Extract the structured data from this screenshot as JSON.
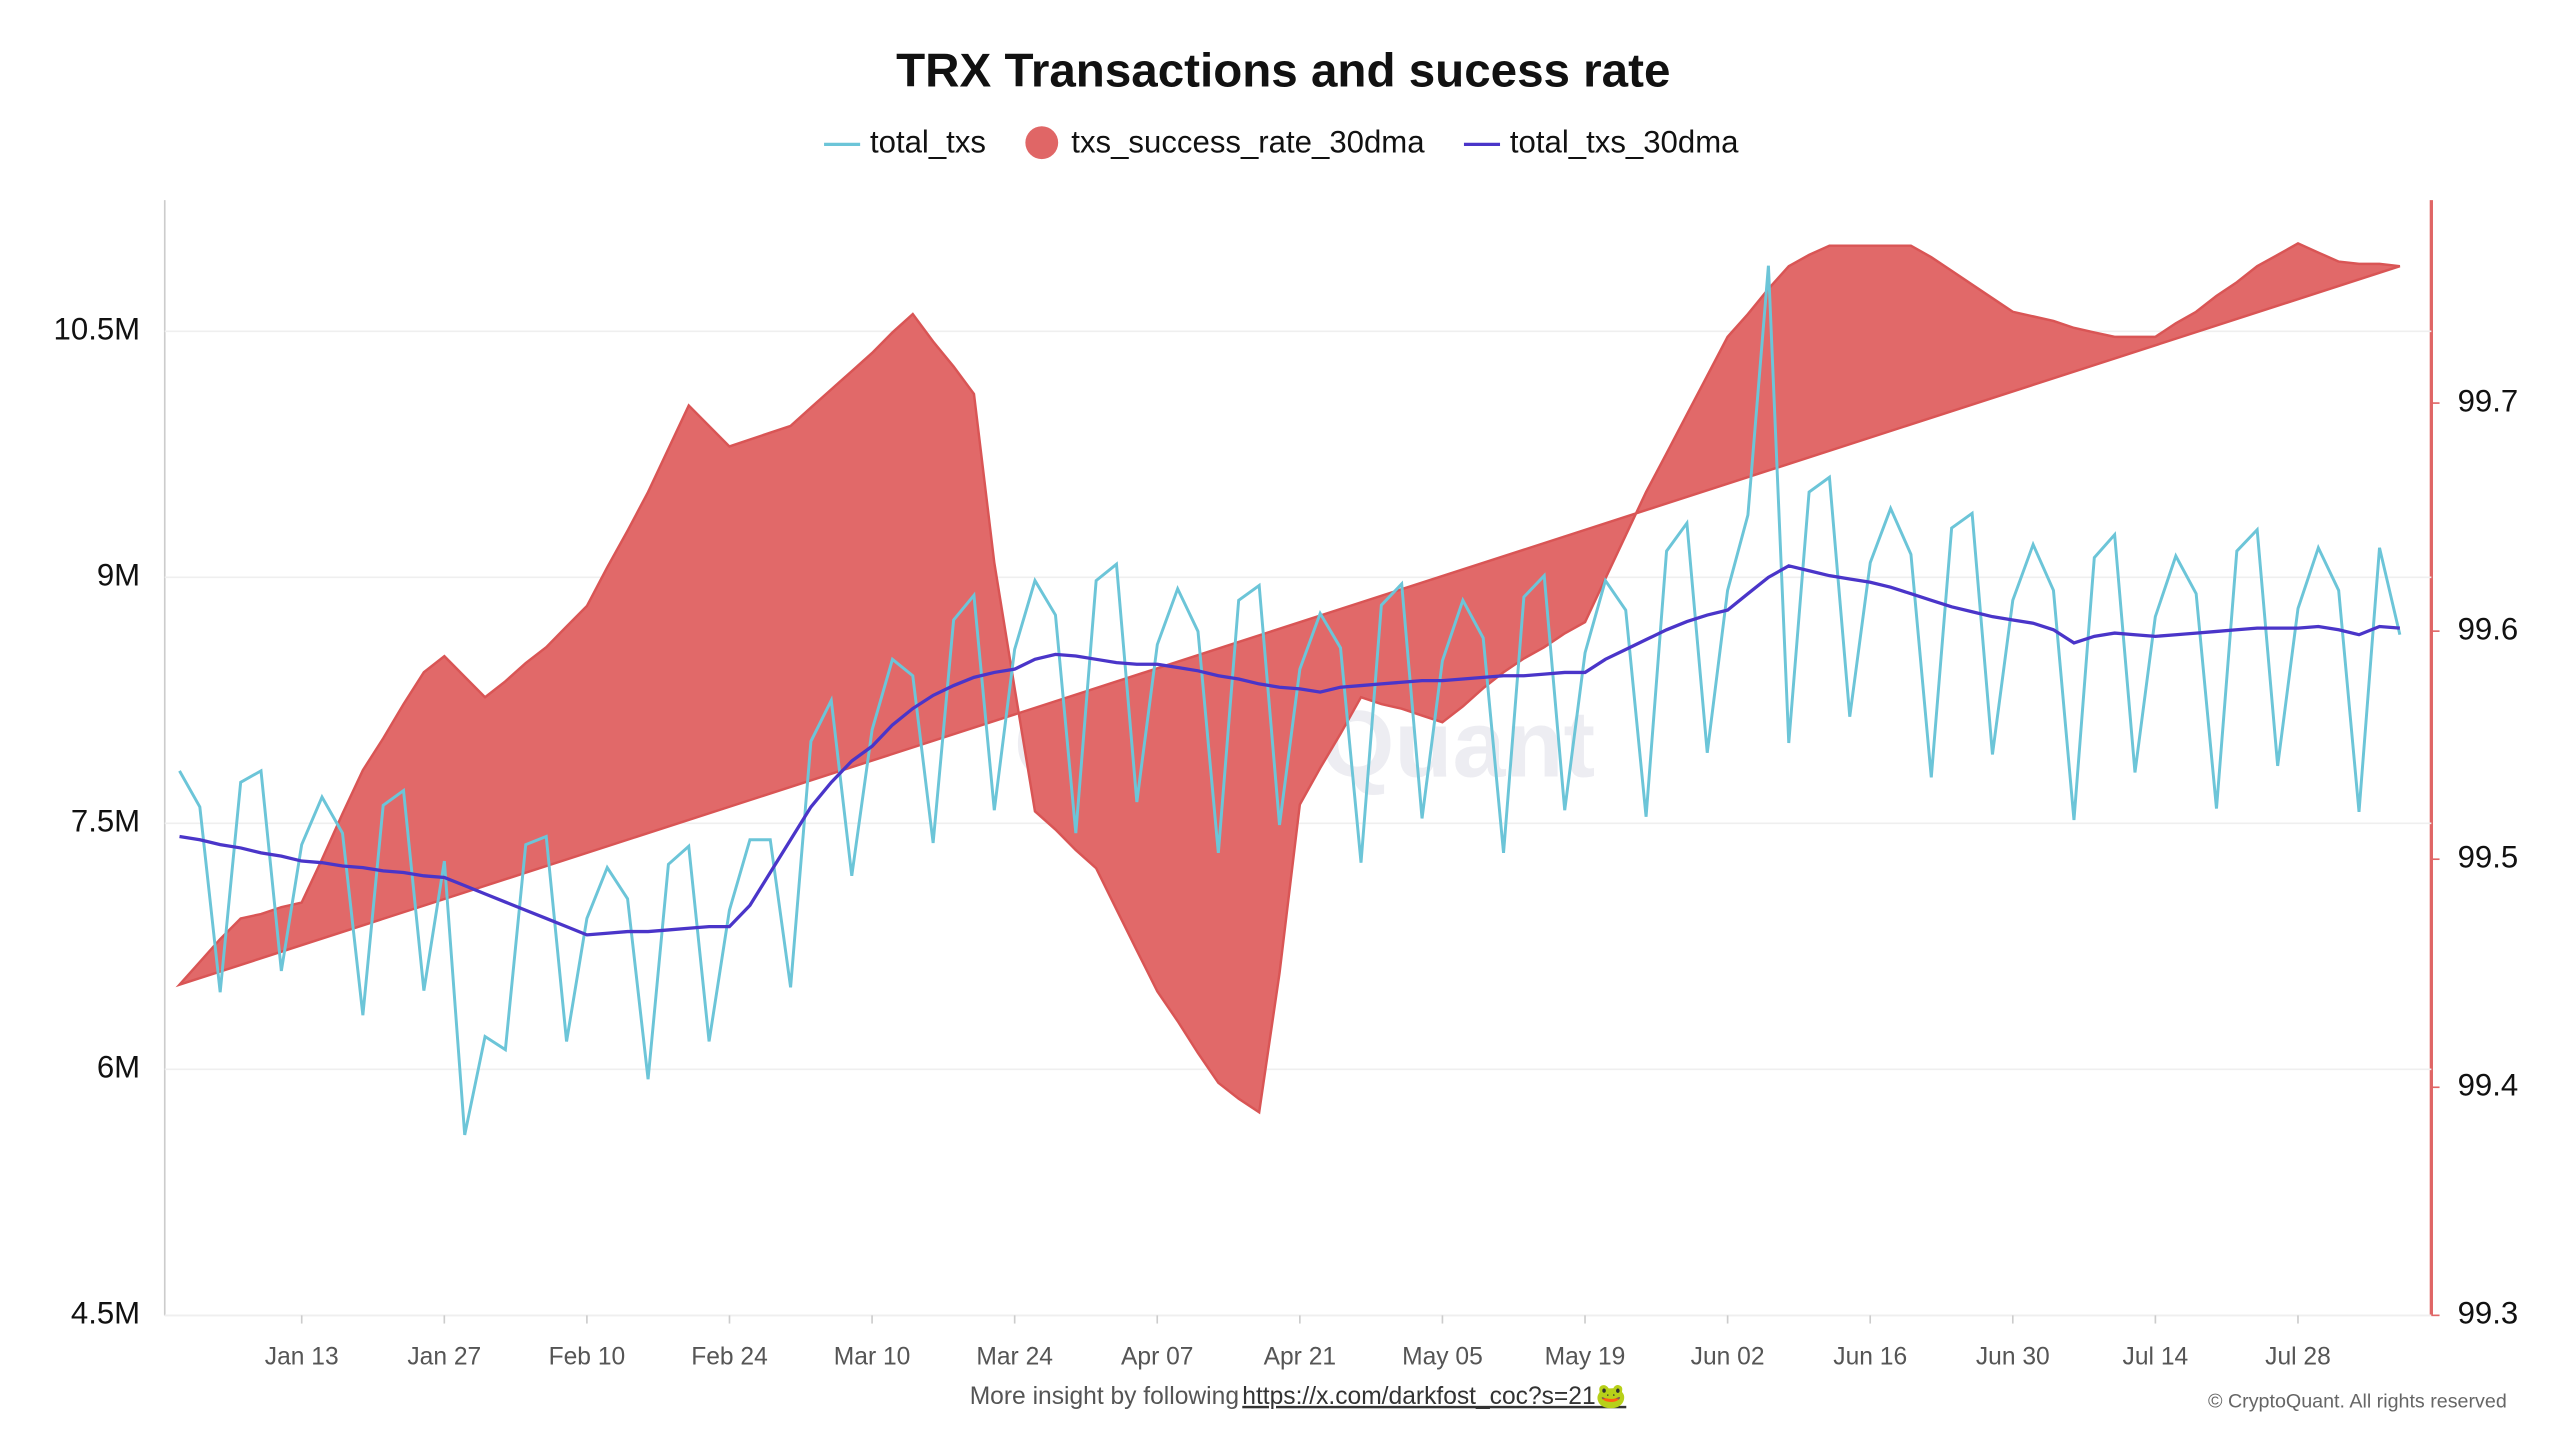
{
  "chart_data": {
    "type": "combo",
    "title": "TRX Transactions and sucess rate",
    "watermark": "CryptoQuant",
    "footer": {
      "text": "More insight by following",
      "link": "https://x.com/darkfost_coc?s=21🐸",
      "copyright": "© CryptoQuant. All rights reserved"
    },
    "categories": [
      null,
      null,
      null,
      null,
      null,
      null,
      "Jan 13",
      null,
      null,
      null,
      null,
      null,
      null,
      "Jan 27",
      null,
      null,
      null,
      null,
      null,
      null,
      "Feb 10",
      null,
      null,
      null,
      null,
      null,
      null,
      "Feb 24",
      null,
      null,
      null,
      null,
      null,
      null,
      "Mar 10",
      null,
      null,
      null,
      null,
      null,
      null,
      "Mar 24",
      null,
      null,
      null,
      null,
      null,
      null,
      "Apr 07",
      null,
      null,
      null,
      null,
      null,
      null,
      "Apr 21",
      null,
      null,
      null,
      null,
      null,
      null,
      "May 05",
      null,
      null,
      null,
      null,
      null,
      null,
      "May 19",
      null,
      null,
      null,
      null,
      null,
      null,
      "Jun 02",
      null,
      null,
      null,
      null,
      null,
      null,
      "Jun 16",
      null,
      null,
      null,
      null,
      null,
      null,
      "Jun 30",
      null,
      null,
      null,
      null,
      null,
      null,
      "Jul 14",
      null,
      null,
      null,
      null,
      null,
      null,
      "Jul 28",
      null,
      null,
      null,
      null,
      null
    ],
    "ylim": [
      4500000,
      11300000
    ],
    "yticks": [
      {
        "value": 4500000,
        "label": "4.5M"
      },
      {
        "value": 6000000,
        "label": "6M"
      },
      {
        "value": 7500000,
        "label": "7.5M"
      },
      {
        "value": 9000000,
        "label": "9M"
      },
      {
        "value": 10500000,
        "label": "10.5M"
      }
    ],
    "y2lim": [
      99.3,
      99.789
    ],
    "y2ticks": [
      99.3,
      99.4,
      99.5,
      99.6,
      99.7
    ],
    "grid": true,
    "series": [
      {
        "name": "total_txs",
        "type": "line",
        "color": "#6cc5d8",
        "values": [
          7820000,
          7600000,
          6470000,
          7750000,
          7820000,
          6600000,
          7370000,
          7660000,
          7440000,
          6330000,
          7610000,
          7700000,
          6480000,
          7270000,
          5600000,
          6200000,
          6120000,
          7370000,
          7420000,
          6170000,
          6920000,
          7230000,
          7040000,
          5940000,
          7250000,
          7360000,
          6170000,
          6970000,
          7400000,
          7400000,
          6500000,
          8000000,
          8250000,
          7180000,
          8070000,
          8500000,
          8400000,
          7380000,
          8740000,
          8890000,
          7580000,
          8560000,
          8980000,
          8770000,
          7440000,
          8980000,
          9080000,
          7630000,
          8590000,
          8930000,
          8670000,
          7320000,
          8860000,
          8950000,
          7490000,
          8440000,
          8780000,
          8570000,
          7260000,
          8830000,
          8960000,
          7530000,
          8490000,
          8860000,
          8630000,
          7320000,
          8880000,
          9010000,
          7580000,
          8540000,
          8980000,
          8800000,
          7540000,
          9160000,
          9330000,
          7930000,
          8920000,
          9380000,
          10900000,
          7990000,
          9520000,
          9610000,
          8150000,
          9090000,
          9420000,
          9140000,
          7780000,
          9300000,
          9390000,
          7920000,
          8860000,
          9200000,
          8920000,
          7520000,
          9120000,
          9260000,
          7810000,
          8760000,
          9130000,
          8900000,
          7590000,
          9160000,
          9290000,
          7850000,
          8810000,
          9180000,
          8920000,
          7570000,
          9180000,
          8650000
        ]
      },
      {
        "name": "txs_success_rate_30dma",
        "type": "area",
        "axis": "y2",
        "color": "#e06666",
        "values": [
          99.445,
          99.455,
          99.465,
          99.474,
          99.476,
          99.479,
          99.481,
          99.5,
          99.52,
          99.539,
          99.553,
          99.568,
          99.582,
          99.589,
          99.58,
          99.571,
          99.578,
          99.586,
          99.593,
          99.602,
          99.611,
          99.628,
          99.644,
          99.661,
          99.68,
          99.699,
          99.69,
          99.681,
          99.684,
          99.687,
          99.69,
          99.698,
          99.706,
          99.714,
          99.722,
          99.731,
          99.739,
          99.727,
          99.716,
          99.704,
          99.63,
          99.575,
          99.521,
          99.513,
          99.504,
          99.496,
          99.478,
          99.46,
          99.442,
          99.429,
          99.415,
          99.402,
          99.395,
          99.389,
          99.45,
          99.524,
          99.54,
          99.555,
          99.571,
          99.568,
          99.566,
          99.563,
          99.56,
          99.567,
          99.575,
          99.582,
          99.588,
          99.593,
          99.599,
          99.604,
          99.623,
          99.642,
          99.661,
          99.678,
          99.695,
          99.712,
          99.729,
          99.739,
          99.75,
          99.76,
          99.765,
          99.769,
          99.769,
          99.769,
          99.769,
          99.769,
          99.764,
          99.758,
          99.752,
          99.746,
          99.74,
          99.738,
          99.736,
          99.733,
          99.731,
          99.729,
          99.729,
          99.729,
          99.735,
          99.74,
          99.747,
          99.753,
          99.76,
          99.765,
          99.77,
          99.766,
          99.762,
          99.761,
          99.761,
          99.76
        ]
      },
      {
        "name": "total_txs_30dma",
        "type": "line",
        "color": "#4a35c9",
        "values": [
          7420000,
          7400000,
          7370000,
          7350000,
          7320000,
          7300000,
          7270000,
          7260000,
          7240000,
          7230000,
          7210000,
          7200000,
          7180000,
          7170000,
          7120000,
          7070000,
          7020000,
          6970000,
          6920000,
          6870000,
          6820000,
          6830000,
          6840000,
          6840000,
          6850000,
          6860000,
          6870000,
          6870000,
          7000000,
          7200000,
          7400000,
          7600000,
          7750000,
          7880000,
          7970000,
          8100000,
          8200000,
          8280000,
          8340000,
          8390000,
          8420000,
          8440000,
          8500000,
          8530000,
          8520000,
          8500000,
          8480000,
          8470000,
          8470000,
          8450000,
          8430000,
          8400000,
          8380000,
          8350000,
          8330000,
          8320000,
          8300000,
          8330000,
          8340000,
          8350000,
          8360000,
          8370000,
          8370000,
          8380000,
          8390000,
          8400000,
          8400000,
          8410000,
          8420000,
          8420000,
          8500000,
          8560000,
          8620000,
          8680000,
          8730000,
          8770000,
          8800000,
          8900000,
          9000000,
          9070000,
          9040000,
          9010000,
          8990000,
          8970000,
          8940000,
          8900000,
          8860000,
          8820000,
          8790000,
          8760000,
          8740000,
          8720000,
          8680000,
          8600000,
          8640000,
          8660000,
          8650000,
          8640000,
          8650000,
          8660000,
          8670000,
          8680000,
          8690000,
          8690000,
          8690000,
          8700000,
          8680000,
          8650000,
          8700000,
          8690000
        ]
      }
    ]
  }
}
